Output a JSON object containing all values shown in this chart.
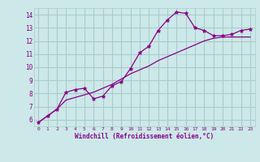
{
  "xlabel": "Windchill (Refroidissement éolien,°C)",
  "bg_color": "#cce8e8",
  "grid_color": "#aacccc",
  "line_color": "#880088",
  "x_data": [
    0,
    1,
    2,
    3,
    4,
    5,
    6,
    7,
    8,
    9,
    10,
    11,
    12,
    13,
    14,
    15,
    16,
    17,
    18,
    19,
    20,
    21,
    22,
    23
  ],
  "y_line1": [
    5.8,
    6.3,
    6.8,
    8.1,
    8.3,
    8.4,
    7.6,
    7.8,
    8.6,
    8.9,
    9.9,
    11.1,
    11.6,
    12.8,
    13.6,
    14.2,
    14.1,
    13.0,
    12.8,
    12.4,
    12.4,
    12.5,
    12.8,
    12.9
  ],
  "y_line2": [
    5.8,
    6.3,
    6.8,
    7.5,
    7.7,
    7.9,
    8.1,
    8.4,
    8.7,
    9.1,
    9.5,
    9.8,
    10.1,
    10.5,
    10.8,
    11.1,
    11.4,
    11.7,
    12.0,
    12.2,
    12.3,
    12.3,
    12.3,
    12.3
  ],
  "ylim": [
    5.5,
    14.5
  ],
  "yticks": [
    6,
    7,
    8,
    9,
    10,
    11,
    12,
    13,
    14
  ],
  "xlim": [
    -0.5,
    23.5
  ],
  "xticks": [
    0,
    1,
    2,
    3,
    4,
    5,
    6,
    7,
    8,
    9,
    10,
    11,
    12,
    13,
    14,
    15,
    16,
    17,
    18,
    19,
    20,
    21,
    22,
    23
  ]
}
